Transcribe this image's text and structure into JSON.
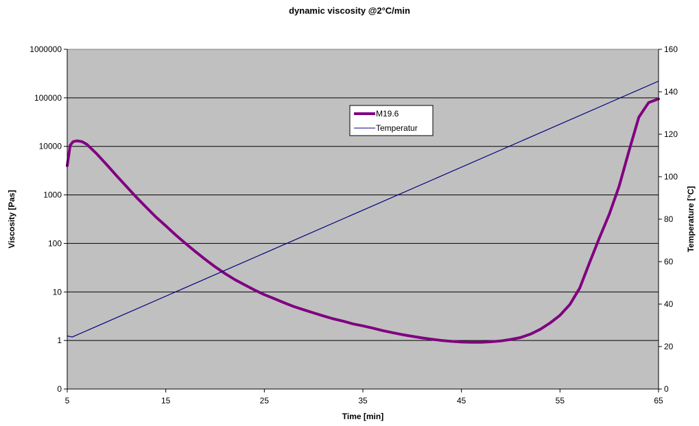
{
  "chart_data": {
    "type": "line",
    "title": "dynamic viscosity @2°C/min",
    "xlabel": "Time [min]",
    "ylabel_left": "Viscosity [Pas]",
    "ylabel_right": "Temperature [°C]",
    "xlim": [
      5,
      65
    ],
    "x_ticks": [
      "5",
      "15",
      "25",
      "35",
      "45",
      "55",
      "65"
    ],
    "y_left_scale": "log",
    "y_left_ticks": [
      "0",
      "1",
      "10",
      "100",
      "1000",
      "10000",
      "100000",
      "1000000"
    ],
    "y_right_lim": [
      0,
      160
    ],
    "y_right_ticks": [
      "0",
      "20",
      "40",
      "60",
      "80",
      "100",
      "120",
      "140",
      "160"
    ],
    "grid": "horizontal major lines",
    "plot_background": "#c0c0c0",
    "legend_position": "top-center inside plot",
    "series": [
      {
        "name": "M19.6",
        "axis": "left",
        "color": "#800080",
        "x": [
          5,
          5.3,
          5.6,
          6,
          6.5,
          7,
          8,
          9,
          10,
          11,
          12,
          13,
          14,
          15,
          16,
          17,
          18,
          19,
          20,
          21,
          22,
          23,
          24,
          25,
          26,
          27,
          28,
          29,
          30,
          31,
          32,
          33,
          34,
          35,
          36,
          37,
          38,
          39,
          40,
          41,
          42,
          43,
          44,
          45,
          46,
          47,
          48,
          49,
          50,
          51,
          52,
          53,
          54,
          55,
          56,
          57,
          58,
          59,
          60,
          61,
          62,
          63,
          64,
          65
        ],
        "y": [
          4000,
          10500,
          12500,
          13000,
          12500,
          11000,
          7000,
          4200,
          2500,
          1500,
          900,
          560,
          350,
          230,
          150,
          100,
          68,
          47,
          33,
          24,
          18,
          14,
          11,
          8.8,
          7.3,
          6.0,
          5.0,
          4.3,
          3.7,
          3.2,
          2.8,
          2.5,
          2.2,
          2.0,
          1.8,
          1.6,
          1.45,
          1.32,
          1.22,
          1.13,
          1.06,
          1.0,
          0.96,
          0.93,
          0.92,
          0.92,
          0.94,
          0.98,
          1.05,
          1.15,
          1.35,
          1.7,
          2.3,
          3.3,
          5.5,
          12,
          40,
          130,
          400,
          1500,
          8000,
          40000,
          80000,
          95000
        ]
      },
      {
        "name": "Temperatur",
        "axis": "right",
        "color": "#000080",
        "x": [
          5,
          5.5,
          65
        ],
        "y": [
          25,
          24.5,
          145
        ]
      }
    ]
  }
}
